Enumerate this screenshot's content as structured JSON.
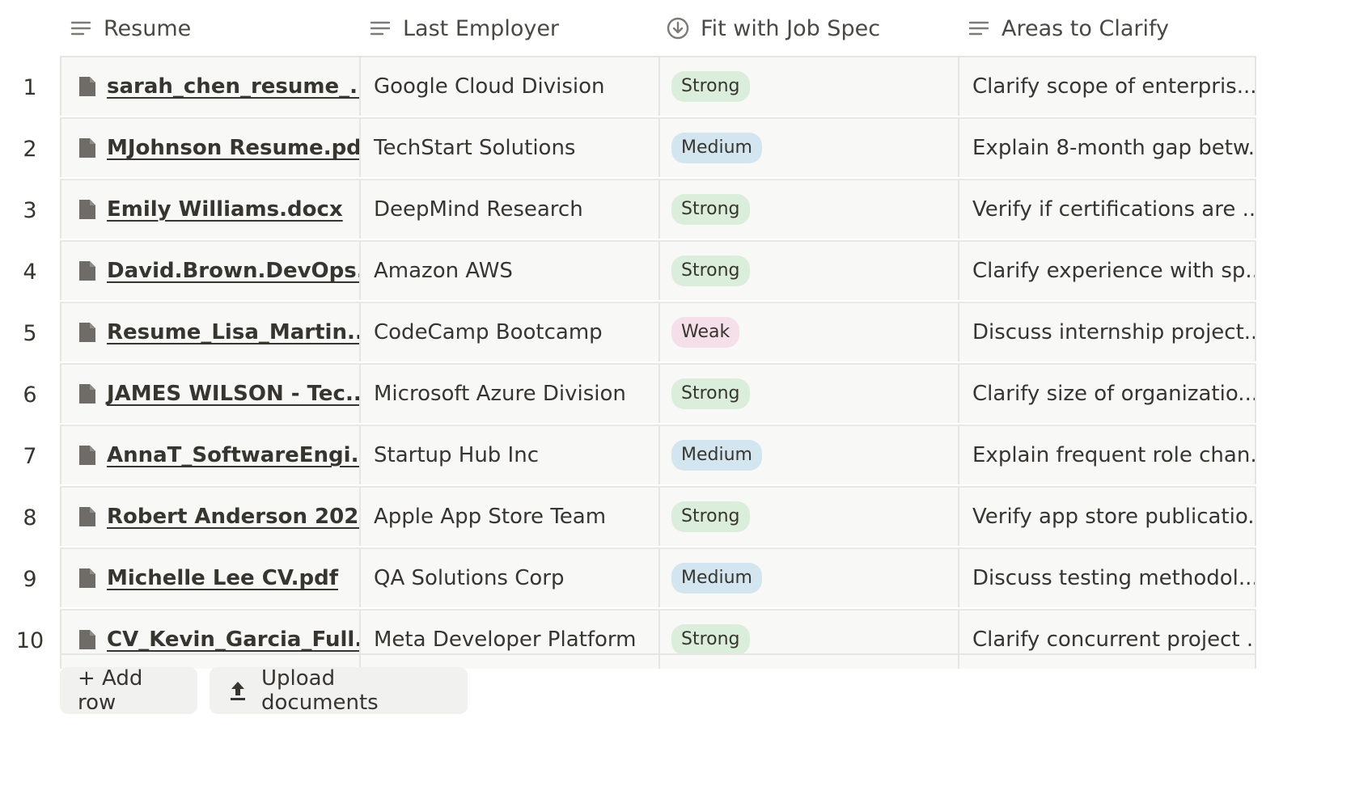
{
  "columns": [
    {
      "label": "Resume",
      "icon": "text-lines-icon"
    },
    {
      "label": "Last Employer",
      "icon": "text-lines-icon"
    },
    {
      "label": "Fit with Job Spec",
      "icon": "circle-arrow-down-icon"
    },
    {
      "label": "Areas to Clarify",
      "icon": "text-lines-icon"
    }
  ],
  "rows": [
    {
      "num": "1",
      "file": "sarah_chen_resume_...",
      "employer": "Google Cloud Division",
      "fit": "Strong",
      "areas": "Clarify scope of enterpris..."
    },
    {
      "num": "2",
      "file": "MJohnson Resume.pdf",
      "employer": "TechStart Solutions",
      "fit": "Medium",
      "areas": "Explain 8-month gap betw..."
    },
    {
      "num": "3",
      "file": "Emily Williams.docx",
      "employer": "DeepMind Research",
      "fit": "Strong",
      "areas": "Verify if certifications are ..."
    },
    {
      "num": "4",
      "file": "David.Brown.DevOps....",
      "employer": "Amazon AWS",
      "fit": "Strong",
      "areas": "Clarify experience with sp..."
    },
    {
      "num": "5",
      "file": "Resume_Lisa_Martin...",
      "employer": "CodeCamp Bootcamp",
      "fit": "Weak",
      "areas": "Discuss internship project..."
    },
    {
      "num": "6",
      "file": "JAMES WILSON - Tec...",
      "employer": "Microsoft Azure Division",
      "fit": "Strong",
      "areas": "Clarify size of organizatio..."
    },
    {
      "num": "7",
      "file": "AnnaT_SoftwareEngi...",
      "employer": "Startup Hub Inc",
      "fit": "Medium",
      "areas": "Explain frequent role chan..."
    },
    {
      "num": "8",
      "file": "Robert Anderson 202...",
      "employer": "Apple App Store Team",
      "fit": "Strong",
      "areas": "Verify app store publicatio..."
    },
    {
      "num": "9",
      "file": "Michelle Lee CV.pdf",
      "employer": "QA Solutions Corp",
      "fit": "Medium",
      "areas": "Discuss testing methodol..."
    },
    {
      "num": "10",
      "file": "CV_Kevin_Garcia_Full...",
      "employer": "Meta Developer Platform",
      "fit": "Strong",
      "areas": "Clarify concurrent project ..."
    }
  ],
  "fit_colors": {
    "Strong": "#dbeddb",
    "Medium": "#d3e5ef",
    "Weak": "#f5e0e9"
  },
  "buttons": {
    "add_row": "+ Add row",
    "upload": "Upload documents"
  }
}
